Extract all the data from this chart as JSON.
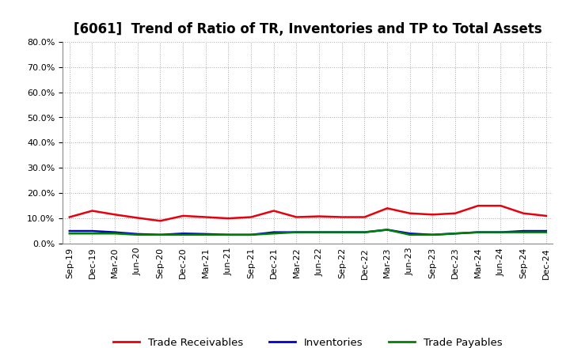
{
  "title": "[6061]  Trend of Ratio of TR, Inventories and TP to Total Assets",
  "labels": [
    "Sep-19",
    "Dec-19",
    "Mar-20",
    "Jun-20",
    "Sep-20",
    "Dec-20",
    "Mar-21",
    "Jun-21",
    "Sep-21",
    "Dec-21",
    "Mar-22",
    "Jun-22",
    "Sep-22",
    "Dec-22",
    "Mar-23",
    "Jun-23",
    "Sep-23",
    "Dec-23",
    "Mar-24",
    "Jun-24",
    "Sep-24",
    "Dec-24"
  ],
  "trade_receivables": [
    10.5,
    13.0,
    11.5,
    10.2,
    9.0,
    11.0,
    10.5,
    10.0,
    10.5,
    13.0,
    10.5,
    10.8,
    10.5,
    10.5,
    14.0,
    12.0,
    11.5,
    12.0,
    15.0,
    15.0,
    12.0,
    11.0
  ],
  "inventories": [
    5.0,
    5.0,
    4.5,
    3.8,
    3.5,
    4.0,
    3.8,
    3.5,
    3.5,
    4.5,
    4.5,
    4.5,
    4.5,
    4.5,
    5.5,
    4.0,
    3.5,
    4.0,
    4.5,
    4.5,
    5.0,
    5.0
  ],
  "trade_payables": [
    4.0,
    4.0,
    4.0,
    3.5,
    3.5,
    3.5,
    3.5,
    3.5,
    3.5,
    4.0,
    4.5,
    4.5,
    4.5,
    4.5,
    5.5,
    3.5,
    3.5,
    4.0,
    4.5,
    4.5,
    4.5,
    4.5
  ],
  "tr_color": "#e8000d",
  "inv_color": "#0000cd",
  "tp_color": "#008000",
  "ylim": [
    0,
    80
  ],
  "yticks": [
    0,
    10,
    20,
    30,
    40,
    50,
    60,
    70,
    80
  ],
  "background_color": "#ffffff",
  "grid_color": "#aaaaaa",
  "title_fontsize": 12,
  "legend_fontsize": 9.5,
  "tick_fontsize": 8
}
